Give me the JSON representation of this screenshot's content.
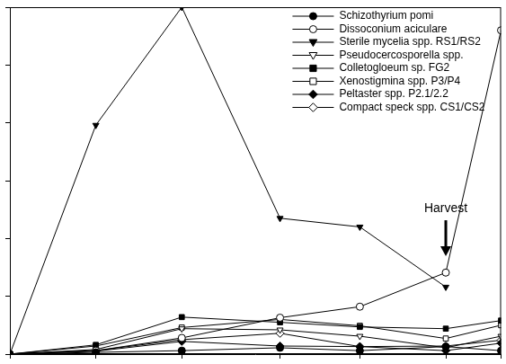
{
  "chart_data": {
    "type": "line",
    "x": [
      0,
      14,
      28,
      44,
      57,
      71,
      80
    ],
    "xlim": [
      0,
      80
    ],
    "xticks": [
      0,
      14,
      28,
      44,
      57,
      71,
      80
    ],
    "ylim": [
      0,
      60
    ],
    "yticks": [
      0,
      10,
      20,
      30,
      40,
      50,
      60
    ],
    "grid": false,
    "tick_labels": false,
    "legend": "top-right",
    "annotations": [
      {
        "text": "Harvest",
        "x": 71,
        "y": 16
      }
    ],
    "series": [
      {
        "name": "Schizothyrium pomi",
        "color": "#000000",
        "marker": "circle",
        "values": [
          0,
          0.3,
          0.6,
          1.1,
          0.6,
          1.3,
          0.6
        ]
      },
      {
        "name": "Dissoconium aciculare",
        "color": "#000000",
        "marker": "circle_open",
        "values": [
          0,
          0.6,
          2.8,
          6.3,
          8.2,
          14.1,
          56.0
        ]
      },
      {
        "name": "Sterile mycelia spp. RS1/RS2",
        "color": "#000000",
        "marker": "triangle_down",
        "values": [
          0,
          39.6,
          60,
          23.5,
          22.0,
          11.6,
          null
        ]
      },
      {
        "name": "Pseudocercosporella spp.",
        "color": "#000000",
        "marker": "triangle_down_open",
        "values": [
          0,
          0.8,
          4.4,
          4.2,
          3.1,
          1.1,
          3.1
        ]
      },
      {
        "name": "Colletogloeum sp. FG2",
        "color": "#000000",
        "marker": "square",
        "values": [
          0,
          1.6,
          6.4,
          5.5,
          4.7,
          4.4,
          5.8
        ]
      },
      {
        "name": "Xenostigmina spp. P3/P4",
        "color": "#000000",
        "marker": "square_open",
        "values": [
          0,
          1.4,
          4.6,
          6.0,
          4.9,
          2.7,
          5.0
        ]
      },
      {
        "name": "Peltaster spp. P2.1/2.2",
        "color": "#000000",
        "marker": "diamond",
        "values": [
          0,
          0.5,
          2.2,
          1.4,
          1.3,
          0.6,
          1.9
        ]
      },
      {
        "name": "Compact speck spp. CS1/CS2",
        "color": "#000000",
        "marker": "diamond_open",
        "values": [
          0,
          0.6,
          2.5,
          3.6,
          1.3,
          1.4,
          2.4
        ]
      }
    ]
  }
}
